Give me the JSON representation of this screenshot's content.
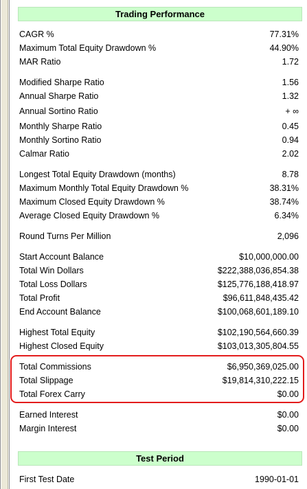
{
  "trading_performance": {
    "header": "Trading Performance",
    "rows": [
      {
        "label": "CAGR %",
        "value": "77.31%"
      },
      {
        "label": "Maximum Total Equity Drawdown %",
        "value": "44.90%"
      },
      {
        "label": "MAR Ratio",
        "value": "1.72"
      },
      {
        "label": "Modified Sharpe Ratio",
        "value": "1.56"
      },
      {
        "label": "Annual Sharpe Ratio",
        "value": "1.32"
      },
      {
        "label": "Annual Sortino Ratio",
        "value": "+ ∞"
      },
      {
        "label": "Monthly Sharpe Ratio",
        "value": "0.45"
      },
      {
        "label": "Monthly Sortino Ratio",
        "value": "0.94"
      },
      {
        "label": "Calmar Ratio",
        "value": "2.02"
      },
      {
        "label": "Longest Total Equity Drawdown (months)",
        "value": "8.78"
      },
      {
        "label": "Maximum Monthly Total Equity Drawdown %",
        "value": "38.31%"
      },
      {
        "label": "Maximum Closed Equity Drawdown %",
        "value": "38.74%"
      },
      {
        "label": "Average Closed Equity Drawdown %",
        "value": "6.34%"
      },
      {
        "label": "Round Turns Per Million",
        "value": "2,096"
      },
      {
        "label": "Start Account Balance",
        "value": "$10,000,000.00"
      },
      {
        "label": "Total Win Dollars",
        "value": "$222,388,036,854.38"
      },
      {
        "label": "Total Loss Dollars",
        "value": "$125,776,188,418.97"
      },
      {
        "label": "Total Profit",
        "value": "$96,611,848,435.42"
      },
      {
        "label": "End Account Balance",
        "value": "$100,068,601,189.10"
      },
      {
        "label": "Highest Total Equity",
        "value": "$102,190,564,660.39"
      },
      {
        "label": "Highest Closed Equity",
        "value": "$103,013,305,804.55"
      },
      {
        "label": "Total Commissions",
        "value": "$6,950,369,025.00"
      },
      {
        "label": "Total Slippage",
        "value": "$19,814,310,222.15"
      },
      {
        "label": "Total Forex Carry",
        "value": "$0.00"
      },
      {
        "label": "Earned Interest",
        "value": "$0.00"
      },
      {
        "label": "Margin Interest",
        "value": "$0.00"
      }
    ]
  },
  "test_period": {
    "header": "Test Period",
    "rows": [
      {
        "label": "First Test Date",
        "value": "1990-01-01"
      }
    ]
  },
  "highlight_color": "#e31b1b",
  "header_color": "#ccffcc"
}
